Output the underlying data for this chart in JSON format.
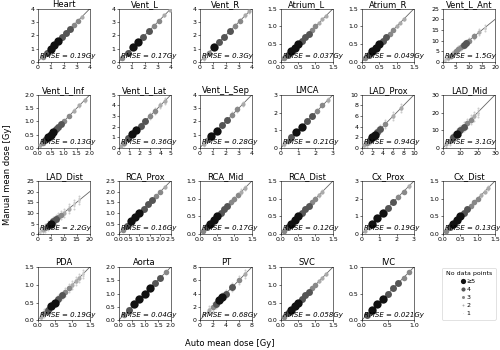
{
  "subplots": [
    {
      "title": "Heart",
      "rmse": "RMSE = 0.19Gy",
      "xlim": [
        0,
        4
      ],
      "ylim": [
        0,
        4
      ],
      "xticks": [
        0,
        1,
        2,
        3,
        4
      ],
      "yticks": [
        0,
        1,
        2,
        3,
        4
      ],
      "auto": [
        0.4,
        0.7,
        1.0,
        1.3,
        1.6,
        1.9,
        2.2,
        2.5,
        2.8,
        3.1,
        3.4
      ],
      "manual_spread": 0.12,
      "counts": [
        3,
        4,
        5,
        5,
        5,
        4,
        4,
        4,
        3,
        3,
        2
      ]
    },
    {
      "title": "Vent_L",
      "rmse": "RMSE = 0.17Gy",
      "xlim": [
        0,
        4
      ],
      "ylim": [
        0,
        4
      ],
      "xticks": [
        0,
        1,
        2,
        3,
        4
      ],
      "yticks": [
        0,
        1,
        2,
        3,
        4
      ],
      "auto": [
        0.3,
        0.7,
        1.1,
        1.5,
        1.9,
        2.3,
        2.7,
        3.1,
        3.5,
        3.9
      ],
      "manual_spread": 0.1,
      "counts": [
        3,
        4,
        5,
        5,
        4,
        4,
        3,
        3,
        2,
        2
      ]
    },
    {
      "title": "Vent_R",
      "rmse": "RMSE = 0.3Gy",
      "xlim": [
        0,
        4
      ],
      "ylim": [
        0,
        4
      ],
      "xticks": [
        0,
        1,
        2,
        3,
        4
      ],
      "yticks": [
        0,
        1,
        2,
        3,
        4
      ],
      "auto": [
        0.3,
        0.7,
        1.1,
        1.5,
        1.9,
        2.3,
        2.7,
        3.1,
        3.5,
        3.8
      ],
      "manual_spread": 0.25,
      "counts": [
        2,
        3,
        5,
        4,
        4,
        4,
        3,
        3,
        2,
        2
      ]
    },
    {
      "title": "Atrium_L",
      "rmse": "RMSE = 0.037Gy",
      "xlim": [
        0,
        1.5
      ],
      "ylim": [
        0,
        1.5
      ],
      "xticks": [
        0,
        0.5,
        1.0,
        1.5
      ],
      "yticks": [
        0,
        0.5,
        1.0,
        1.5
      ],
      "auto": [
        0.1,
        0.2,
        0.3,
        0.4,
        0.5,
        0.6,
        0.7,
        0.8,
        0.9,
        1.0,
        1.1,
        1.2,
        1.3
      ],
      "manual_spread": 0.025,
      "counts": [
        3,
        4,
        5,
        5,
        5,
        4,
        4,
        4,
        3,
        3,
        2,
        2,
        2
      ]
    },
    {
      "title": "Atrium_R",
      "rmse": "RMSE = 0.049Gy",
      "xlim": [
        0,
        1.5
      ],
      "ylim": [
        0,
        1.5
      ],
      "xticks": [
        0,
        0.5,
        1.0,
        1.5
      ],
      "yticks": [
        0,
        0.5,
        1.0,
        1.5
      ],
      "auto": [
        0.1,
        0.2,
        0.3,
        0.4,
        0.5,
        0.6,
        0.7,
        0.8,
        0.9,
        1.0,
        1.1,
        1.2
      ],
      "manual_spread": 0.03,
      "counts": [
        3,
        4,
        5,
        5,
        5,
        4,
        4,
        3,
        3,
        2,
        2,
        2
      ]
    },
    {
      "title": "Vent_L_Ant",
      "rmse": "RMSE = 1.5Gy",
      "xlim": [
        0,
        20
      ],
      "ylim": [
        0,
        25
      ],
      "xticks": [
        0,
        5,
        10,
        15,
        20
      ],
      "yticks": [
        0,
        5,
        10,
        15,
        20,
        25
      ],
      "auto": [
        1,
        2,
        3,
        4,
        5,
        6,
        7,
        8,
        9,
        10,
        12,
        14,
        16
      ],
      "manual_spread": 2.5,
      "counts": [
        1,
        2,
        3,
        2,
        3,
        3,
        3,
        4,
        4,
        3,
        3,
        2,
        1
      ]
    },
    {
      "title": "Vent_L_Inf",
      "rmse": "RMSE = 0.13Gy",
      "xlim": [
        0,
        2
      ],
      "ylim": [
        0,
        2
      ],
      "xticks": [
        0,
        0.5,
        1.0,
        1.5,
        2.0
      ],
      "yticks": [
        0,
        0.5,
        1.0,
        1.5,
        2.0
      ],
      "auto": [
        0.1,
        0.2,
        0.3,
        0.4,
        0.5,
        0.6,
        0.7,
        0.8,
        0.9,
        1.0,
        1.2,
        1.4,
        1.6,
        1.8
      ],
      "manual_spread": 0.1,
      "counts": [
        2,
        3,
        4,
        5,
        5,
        5,
        4,
        4,
        4,
        3,
        3,
        2,
        2,
        2
      ]
    },
    {
      "title": "Vent_L_Lat",
      "rmse": "RMSE = 0.36Gy",
      "xlim": [
        0,
        5
      ],
      "ylim": [
        0,
        5
      ],
      "xticks": [
        0,
        1,
        2,
        3,
        4,
        5
      ],
      "yticks": [
        0,
        1,
        2,
        3,
        4,
        5
      ],
      "auto": [
        0.2,
        0.5,
        0.9,
        1.3,
        1.7,
        2.1,
        2.5,
        3.0,
        3.5,
        4.0,
        4.4
      ],
      "manual_spread": 0.55,
      "counts": [
        2,
        3,
        4,
        5,
        5,
        4,
        4,
        3,
        3,
        2,
        2
      ]
    },
    {
      "title": "Vent_L_Sep",
      "rmse": "RMSE = 0.28Gy",
      "xlim": [
        0,
        4
      ],
      "ylim": [
        0,
        4
      ],
      "xticks": [
        0,
        1,
        2,
        3,
        4
      ],
      "yticks": [
        0,
        1,
        2,
        3,
        4
      ],
      "auto": [
        0.3,
        0.6,
        0.9,
        1.3,
        1.7,
        2.1,
        2.5,
        2.9,
        3.3
      ],
      "manual_spread": 0.35,
      "counts": [
        2,
        3,
        5,
        5,
        4,
        4,
        3,
        3,
        2
      ]
    },
    {
      "title": "LMCA",
      "rmse": "RMSE = 0.21Gy",
      "xlim": [
        0,
        3
      ],
      "ylim": [
        0,
        3
      ],
      "xticks": [
        0,
        1,
        2,
        3
      ],
      "yticks": [
        0,
        1,
        2,
        3
      ],
      "auto": [
        0.2,
        0.4,
        0.6,
        0.9,
        1.2,
        1.5,
        1.8,
        2.1,
        2.4,
        2.7
      ],
      "manual_spread": 0.22,
      "counts": [
        2,
        3,
        4,
        5,
        5,
        4,
        4,
        3,
        3,
        2
      ]
    },
    {
      "title": "LAD_Prox",
      "rmse": "RMSE = 0.94Gy",
      "xlim": [
        0,
        10
      ],
      "ylim": [
        0,
        10
      ],
      "xticks": [
        0,
        2,
        4,
        6,
        8,
        10
      ],
      "yticks": [
        0,
        2,
        4,
        6,
        8,
        10
      ],
      "auto": [
        0.5,
        1.0,
        1.5,
        2.0,
        2.5,
        3.0,
        3.5,
        4.5,
        6.0,
        7.5
      ],
      "manual_spread": 1.5,
      "counts": [
        2,
        3,
        4,
        5,
        5,
        4,
        4,
        3,
        2,
        2
      ]
    },
    {
      "title": "LAD_Mid",
      "rmse": "RMSE = 3.1Gy",
      "xlim": [
        0,
        30
      ],
      "ylim": [
        0,
        30
      ],
      "xticks": [
        0,
        10,
        20,
        30
      ],
      "yticks": [
        0,
        10,
        20,
        30
      ],
      "auto": [
        2,
        4,
        6,
        8,
        10,
        12,
        14,
        16,
        18,
        20
      ],
      "manual_spread": 5.0,
      "counts": [
        2,
        3,
        4,
        5,
        4,
        4,
        3,
        3,
        2,
        1
      ]
    },
    {
      "title": "LAD_Dist",
      "rmse": "RMSE = 2.2Gy",
      "xlim": [
        0,
        20
      ],
      "ylim": [
        0,
        25
      ],
      "xticks": [
        0,
        5,
        10,
        15,
        20
      ],
      "yticks": [
        0,
        5,
        10,
        15,
        20,
        25
      ],
      "auto": [
        1,
        2,
        3,
        4,
        5,
        6,
        7,
        8,
        9,
        10,
        12,
        14,
        16
      ],
      "manual_spread": 4.0,
      "counts": [
        1,
        2,
        3,
        4,
        5,
        4,
        4,
        3,
        3,
        2,
        2,
        1,
        1
      ]
    },
    {
      "title": "RCA_Prox",
      "rmse": "RMSE = 0.16Gy",
      "xlim": [
        0,
        2.5
      ],
      "ylim": [
        0,
        2.5
      ],
      "xticks": [
        0,
        0.5,
        1.0,
        1.5,
        2.0,
        2.5
      ],
      "yticks": [
        0,
        0.5,
        1.0,
        1.5,
        2.0,
        2.5
      ],
      "auto": [
        0.2,
        0.4,
        0.6,
        0.8,
        1.0,
        1.2,
        1.4,
        1.6,
        1.8,
        2.0,
        2.2
      ],
      "manual_spread": 0.1,
      "counts": [
        3,
        4,
        5,
        5,
        5,
        4,
        4,
        4,
        3,
        3,
        2
      ]
    },
    {
      "title": "RCA_Mid",
      "rmse": "RMSE = 0.17Gy",
      "xlim": [
        0,
        1.5
      ],
      "ylim": [
        0,
        1.5
      ],
      "xticks": [
        0,
        0.5,
        1.0,
        1.5
      ],
      "yticks": [
        0,
        0.5,
        1.0,
        1.5
      ],
      "auto": [
        0.1,
        0.2,
        0.3,
        0.4,
        0.5,
        0.6,
        0.7,
        0.8,
        0.9,
        1.0,
        1.1,
        1.2,
        1.3
      ],
      "manual_spread": 0.12,
      "counts": [
        3,
        4,
        5,
        5,
        5,
        4,
        4,
        4,
        3,
        3,
        3,
        2,
        2
      ]
    },
    {
      "title": "RCA_Dist",
      "rmse": "RMSE = 0.12Gy",
      "xlim": [
        0,
        1.5
      ],
      "ylim": [
        0,
        1.5
      ],
      "xticks": [
        0,
        0.5,
        1.0,
        1.5
      ],
      "yticks": [
        0,
        0.5,
        1.0,
        1.5
      ],
      "auto": [
        0.1,
        0.2,
        0.3,
        0.4,
        0.5,
        0.6,
        0.7,
        0.8,
        0.9,
        1.0,
        1.1,
        1.2
      ],
      "manual_spread": 0.08,
      "counts": [
        3,
        4,
        5,
        5,
        5,
        4,
        4,
        4,
        3,
        3,
        2,
        2
      ]
    },
    {
      "title": "Cx_Prox",
      "rmse": "RMSE = 0.19Gy",
      "xlim": [
        0,
        3
      ],
      "ylim": [
        0,
        3
      ],
      "xticks": [
        0,
        1,
        2,
        3
      ],
      "yticks": [
        0,
        1,
        2,
        3
      ],
      "auto": [
        0.2,
        0.4,
        0.6,
        0.9,
        1.2,
        1.5,
        1.8,
        2.1,
        2.4,
        2.7
      ],
      "manual_spread": 0.18,
      "counts": [
        2,
        3,
        5,
        5,
        5,
        4,
        4,
        3,
        3,
        2
      ]
    },
    {
      "title": "Cx_Dist",
      "rmse": "RMSE = 0.13Gy",
      "xlim": [
        0,
        1.5
      ],
      "ylim": [
        0,
        1.5
      ],
      "xticks": [
        0,
        0.5,
        1.0,
        1.5
      ],
      "yticks": [
        0,
        0.5,
        1.0,
        1.5
      ],
      "auto": [
        0.1,
        0.2,
        0.3,
        0.4,
        0.5,
        0.6,
        0.7,
        0.8,
        0.9,
        1.0,
        1.1,
        1.2,
        1.3
      ],
      "manual_spread": 0.09,
      "counts": [
        3,
        4,
        5,
        5,
        5,
        4,
        4,
        3,
        3,
        3,
        2,
        2,
        2
      ]
    },
    {
      "title": "PDA",
      "rmse": "RMSE = 0.19Gy",
      "xlim": [
        0,
        1.5
      ],
      "ylim": [
        0,
        1.5
      ],
      "xticks": [
        0,
        0.5,
        1.0,
        1.5
      ],
      "yticks": [
        0,
        0.5,
        1.0,
        1.5
      ],
      "auto": [
        0.1,
        0.2,
        0.3,
        0.4,
        0.5,
        0.6,
        0.7,
        0.8,
        0.9,
        1.0,
        1.1,
        1.2,
        1.3
      ],
      "manual_spread": 0.22,
      "counts": [
        2,
        3,
        4,
        5,
        5,
        4,
        4,
        3,
        3,
        2,
        2,
        2,
        1
      ]
    },
    {
      "title": "Aorta",
      "rmse": "RMSE = 0.04Gy",
      "xlim": [
        0,
        2
      ],
      "ylim": [
        0,
        2
      ],
      "xticks": [
        0,
        0.5,
        1.0,
        1.5,
        2.0
      ],
      "yticks": [
        0,
        0.5,
        1.0,
        1.5,
        2.0
      ],
      "auto": [
        0.2,
        0.4,
        0.6,
        0.8,
        1.0,
        1.2,
        1.4,
        1.6,
        1.8
      ],
      "manual_spread": 0.025,
      "counts": [
        3,
        4,
        5,
        5,
        5,
        5,
        4,
        4,
        3
      ]
    },
    {
      "title": "PT",
      "rmse": "RMSE = 0.68Gy",
      "xlim": [
        0,
        8
      ],
      "ylim": [
        0,
        8
      ],
      "xticks": [
        0,
        2,
        4,
        6,
        8
      ],
      "yticks": [
        0,
        2,
        4,
        6,
        8
      ],
      "auto": [
        1.5,
        2.0,
        2.5,
        3.0,
        3.5,
        4.0,
        5.0,
        6.0,
        7.0
      ],
      "manual_spread": 1.2,
      "counts": [
        2,
        3,
        4,
        5,
        5,
        4,
        4,
        3,
        2
      ]
    },
    {
      "title": "SVC",
      "rmse": "RMSE = 0.058Gy",
      "xlim": [
        0,
        1.5
      ],
      "ylim": [
        0,
        1.5
      ],
      "xticks": [
        0,
        0.5,
        1.0,
        1.5
      ],
      "yticks": [
        0,
        0.5,
        1.0,
        1.5
      ],
      "auto": [
        0.1,
        0.2,
        0.3,
        0.4,
        0.5,
        0.6,
        0.7,
        0.8,
        0.9,
        1.0,
        1.1,
        1.2,
        1.3
      ],
      "manual_spread": 0.045,
      "counts": [
        3,
        4,
        5,
        5,
        5,
        4,
        4,
        4,
        3,
        3,
        2,
        2,
        2
      ]
    },
    {
      "title": "IVC",
      "rmse": "RMSE = 0.021Gy",
      "xlim": [
        0,
        1
      ],
      "ylim": [
        0,
        1
      ],
      "xticks": [
        0,
        0.5,
        1.0
      ],
      "yticks": [
        0,
        0.5,
        1.0
      ],
      "auto": [
        0.1,
        0.2,
        0.3,
        0.4,
        0.5,
        0.6,
        0.7,
        0.8,
        0.9
      ],
      "manual_spread": 0.012,
      "counts": [
        4,
        5,
        5,
        5,
        4,
        4,
        4,
        3,
        3
      ]
    }
  ],
  "xlabel": "Auto mean dose [Gy]",
  "ylabel": "Manual mean dose [Gy]",
  "dot_colors": [
    "#111111",
    "#555555",
    "#888888",
    "#aaaaaa",
    "#cccccc"
  ],
  "dot_sizes": [
    36,
    25,
    16,
    9,
    4
  ],
  "gray_dot_color": "#cccccc",
  "gray_dot_size": 2,
  "legend_labels": [
    "≥5",
    "4",
    "3",
    "2",
    "1"
  ],
  "legend_title": "No data points",
  "line_color": "#666666",
  "rmse_fontsize": 5.0,
  "title_fontsize": 6.0,
  "tick_fontsize": 4.5
}
